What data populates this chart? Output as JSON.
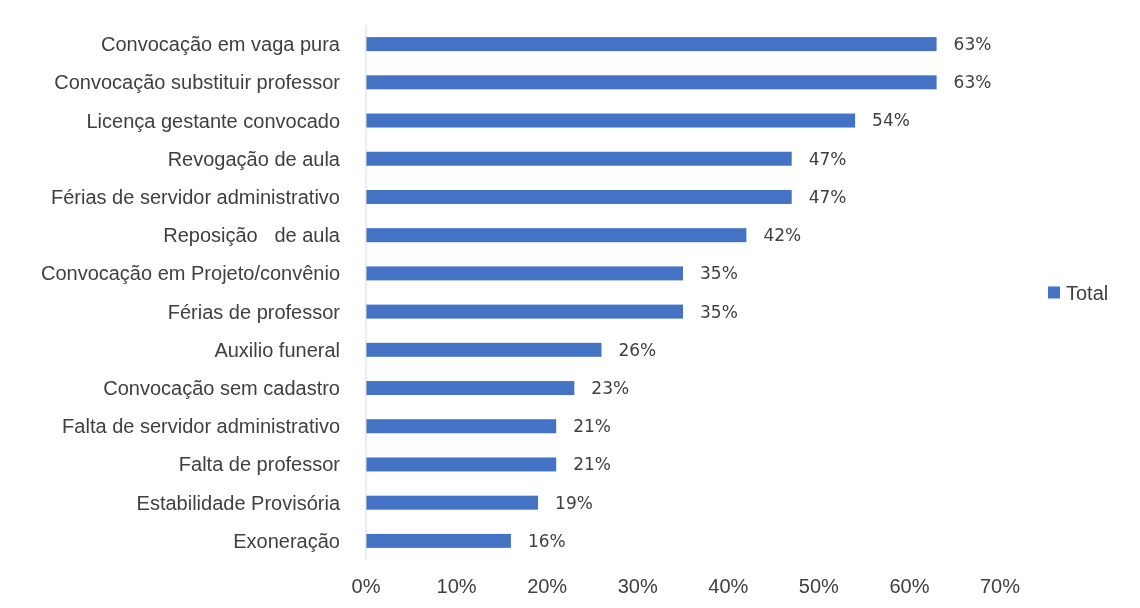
{
  "chart_data": {
    "type": "bar",
    "orientation": "horizontal",
    "categories": [
      "Convocação em vaga pura",
      "Convocação substituir professor",
      "Licença gestante convocado",
      "Revogação de aula",
      "Férias de servidor administrativo",
      "Reposição   de aula",
      "Convocação em Projeto/convênio",
      "Férias de professor",
      "Auxilio funeral",
      "Convocação sem cadastro",
      "Falta de servidor administrativo",
      "Falta de professor",
      "Estabilidade Provisória",
      "Exoneração"
    ],
    "series": [
      {
        "name": "Total",
        "color": "#4472c4",
        "values": [
          63,
          63,
          54,
          47,
          47,
          42,
          35,
          35,
          26,
          23,
          21,
          21,
          19,
          16
        ],
        "value_labels": [
          "63%",
          "63%",
          "54%",
          "47%",
          "47%",
          "42%",
          "35%",
          "35%",
          "26%",
          "23%",
          "21%",
          "21%",
          "19%",
          "16%"
        ]
      }
    ],
    "xlim": [
      0,
      70
    ],
    "xticks": [
      {
        "value": 0,
        "label": "0%"
      },
      {
        "value": 10,
        "label": "10%"
      },
      {
        "value": 20,
        "label": "20%"
      },
      {
        "value": 30,
        "label": "30%"
      },
      {
        "value": 40,
        "label": "40%"
      },
      {
        "value": 50,
        "label": "50%"
      },
      {
        "value": 60,
        "label": "60%"
      },
      {
        "value": 70,
        "label": "70%"
      }
    ],
    "grid": false,
    "legend": "right"
  }
}
